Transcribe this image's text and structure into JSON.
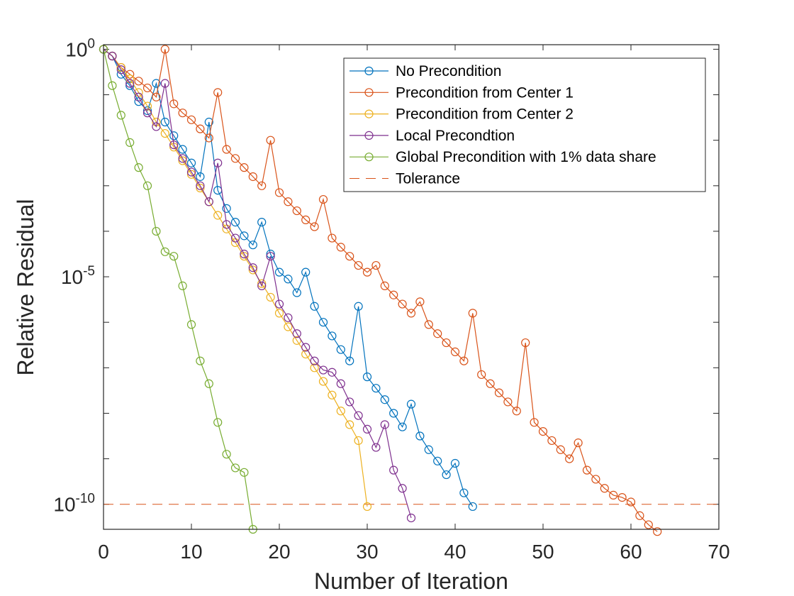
{
  "chart_data": {
    "type": "line",
    "y_scale": "log",
    "xlabel": "Number of Iteration",
    "ylabel": "Relative Residual",
    "xlim": [
      0,
      70
    ],
    "ylim_log10": [
      -10.55,
      0.1
    ],
    "x_ticks": [
      0,
      10,
      20,
      30,
      40,
      50,
      60,
      70
    ],
    "y_ticks": [
      {
        "base": "10",
        "exp": "0",
        "log10": 0
      },
      {
        "base": "10",
        "exp": "-5",
        "log10": -5
      },
      {
        "base": "10",
        "exp": "-10",
        "log10": -10
      }
    ],
    "legend_position": "top-right",
    "series": [
      {
        "name": "No Precondition",
        "color": "#0072BD",
        "marker": "circle",
        "x": [
          0,
          1,
          2,
          3,
          4,
          5,
          6,
          7,
          8,
          9,
          10,
          11,
          12,
          13,
          14,
          15,
          16,
          17,
          18,
          19,
          20,
          21,
          22,
          23,
          24,
          25,
          26,
          27,
          28,
          29,
          30,
          31,
          32,
          33,
          34,
          35,
          36,
          37,
          38,
          39,
          40,
          41,
          42
        ],
        "log10_y": [
          0,
          -0.15,
          -0.55,
          -0.8,
          -1.15,
          -1.35,
          -0.75,
          -1.6,
          -1.9,
          -2.2,
          -2.5,
          -2.8,
          -1.6,
          -3.1,
          -3.5,
          -3.8,
          -4.1,
          -4.3,
          -3.8,
          -4.5,
          -4.9,
          -5.05,
          -5.35,
          -4.9,
          -5.65,
          -6.0,
          -6.3,
          -6.6,
          -6.85,
          -5.65,
          -7.2,
          -7.45,
          -7.7,
          -8.0,
          -8.3,
          -7.8,
          -8.5,
          -8.8,
          -9.05,
          -9.35,
          -9.1,
          -9.75,
          -10.05
        ]
      },
      {
        "name": "Precondition from Center 1",
        "color": "#D95319",
        "marker": "circle",
        "x": [
          0,
          1,
          2,
          3,
          4,
          5,
          6,
          7,
          8,
          9,
          10,
          11,
          12,
          13,
          14,
          15,
          16,
          17,
          18,
          19,
          20,
          21,
          22,
          23,
          24,
          25,
          26,
          27,
          28,
          29,
          30,
          31,
          32,
          33,
          34,
          35,
          36,
          37,
          38,
          39,
          40,
          41,
          42,
          43,
          44,
          45,
          46,
          47,
          48,
          49,
          50,
          51,
          52,
          53,
          54,
          55,
          56,
          57,
          58,
          59,
          60,
          61,
          62,
          63
        ],
        "log10_y": [
          0,
          -0.15,
          -0.4,
          -0.55,
          -0.7,
          -0.85,
          -1.05,
          0,
          -1.2,
          -1.4,
          -1.55,
          -1.75,
          -1.95,
          -0.95,
          -2.2,
          -2.4,
          -2.6,
          -2.8,
          -3.0,
          -2.0,
          -3.15,
          -3.35,
          -3.55,
          -3.75,
          -3.9,
          -3.3,
          -4.15,
          -4.35,
          -4.55,
          -4.75,
          -4.9,
          -4.75,
          -5.2,
          -5.4,
          -5.6,
          -5.8,
          -5.55,
          -6.05,
          -6.25,
          -6.45,
          -6.65,
          -6.85,
          -5.8,
          -7.15,
          -7.35,
          -7.55,
          -7.75,
          -7.95,
          -6.45,
          -8.2,
          -8.4,
          -8.6,
          -8.8,
          -9.0,
          -8.65,
          -9.25,
          -9.45,
          -9.65,
          -9.8,
          -9.85,
          -9.95,
          -10.25,
          -10.45,
          -10.6
        ]
      },
      {
        "name": "Precondition from Center 2",
        "color": "#EDB120",
        "marker": "circle",
        "x": [
          0,
          1,
          2,
          3,
          4,
          5,
          6,
          7,
          8,
          9,
          10,
          11,
          12,
          13,
          14,
          15,
          16,
          17,
          18,
          19,
          20,
          21,
          22,
          23,
          24,
          25,
          26,
          27,
          28,
          29,
          30
        ],
        "log10_y": [
          0,
          -0.15,
          -0.4,
          -0.65,
          -0.95,
          -1.25,
          -1.6,
          -1.85,
          -2.15,
          -2.45,
          -2.75,
          -3.05,
          -3.35,
          -3.65,
          -3.95,
          -4.25,
          -4.55,
          -4.85,
          -5.15,
          -5.45,
          -5.8,
          -6.1,
          -6.4,
          -6.7,
          -7.0,
          -7.3,
          -7.6,
          -7.95,
          -8.25,
          -8.6,
          -10.05
        ]
      },
      {
        "name": "Local Precondtion",
        "color": "#7E2F8E",
        "marker": "circle",
        "x": [
          0,
          1,
          2,
          3,
          4,
          5,
          6,
          7,
          8,
          9,
          10,
          11,
          12,
          13,
          14,
          15,
          16,
          17,
          18,
          19,
          20,
          21,
          22,
          23,
          24,
          25,
          26,
          27,
          28,
          29,
          30,
          31,
          32,
          33,
          34,
          35
        ],
        "log10_y": [
          0,
          -0.15,
          -0.45,
          -0.75,
          -1.05,
          -1.4,
          -1.7,
          -0.75,
          -2.1,
          -2.4,
          -2.7,
          -3.0,
          -3.35,
          -2.5,
          -3.85,
          -4.15,
          -4.5,
          -4.8,
          -5.2,
          -4.55,
          -5.6,
          -5.9,
          -6.25,
          -6.55,
          -6.85,
          -7.05,
          -7.1,
          -7.35,
          -7.75,
          -8.05,
          -8.35,
          -8.75,
          -8.25,
          -9.25,
          -9.65,
          -10.3
        ]
      },
      {
        "name": "Global Precondition with 1% data share",
        "color": "#77AC30",
        "marker": "circle",
        "x": [
          0,
          1,
          2,
          3,
          4,
          5,
          6,
          7,
          8,
          9,
          10,
          11,
          12,
          13,
          14,
          15,
          16,
          17
        ],
        "log10_y": [
          0,
          -0.8,
          -1.45,
          -2.05,
          -2.6,
          -3.0,
          -4.0,
          -4.45,
          -4.55,
          -5.2,
          -6.05,
          -6.85,
          -7.35,
          -8.2,
          -8.9,
          -9.2,
          -9.3,
          -10.55
        ]
      }
    ],
    "reference_lines": [
      {
        "name": "Tolerance",
        "color": "#D95319",
        "style": "dashed",
        "log10_y": -10
      }
    ]
  }
}
